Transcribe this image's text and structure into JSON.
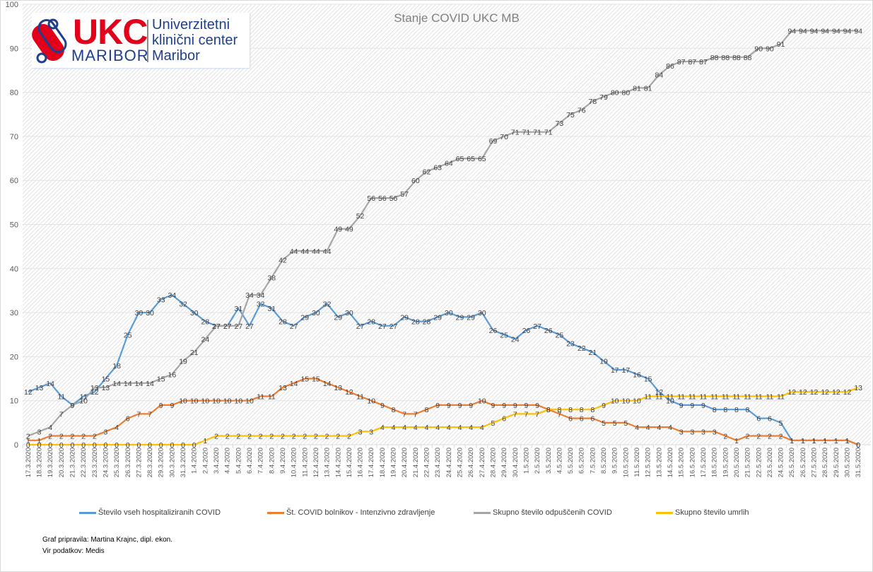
{
  "logo": {
    "brand": "UKC",
    "city": "MARIBOR",
    "lines": [
      "Univerzitetni",
      "klinični center",
      "Maribor"
    ]
  },
  "footer": {
    "author": "Graf pripravila: Martina Krajnc, dipl. ekon.",
    "source": "Vir podatkov: Medis"
  },
  "chart_data": {
    "type": "line",
    "title": "Stanje  COVID UKC MB",
    "xlabel": "",
    "ylabel": "",
    "ylim": [
      0,
      100
    ],
    "yticks": [
      0,
      10,
      20,
      30,
      40,
      50,
      60,
      70,
      80,
      90,
      100
    ],
    "grid": true,
    "legend": "bottom",
    "x": [
      "17.3.2020",
      "18.3.2020",
      "19.3.2020",
      "20.3.2020",
      "21.3.2020",
      "22.3.2020",
      "23.3.2020",
      "24.3.2020",
      "25.3.2020",
      "26.3.2020",
      "27.3.2020",
      "28.3.2020",
      "29.3.2020",
      "30.3.2020",
      "31.3.2020",
      "1.4.2020",
      "2.4.2020",
      "3.4.2020",
      "4.4.2020",
      "5.4.2020",
      "6.4.2020",
      "7.4.2020",
      "8.4.2020",
      "9.4.2020",
      "10.4.2020",
      "11.4.2020",
      "12.4.2020",
      "13.4.2020",
      "14.4.2020",
      "15.4.2020",
      "16.4.2020",
      "17.4.2020",
      "18.4.2020",
      "19.4.2020",
      "20.4.2020",
      "21.4.2020",
      "22.4.2020",
      "23.4.2020",
      "24.4.2020",
      "25.4.2020",
      "26.4.2020",
      "27.4.2020",
      "28.4.2020",
      "29.4.2020",
      "30.4.2020",
      "1.5.2020",
      "2.5.2020",
      "3.5.2020",
      "4.5.2020",
      "5.5.2020",
      "6.5.2020",
      "7.5.2020",
      "8.5.2020",
      "9.5.2020",
      "10.5.2020",
      "11.5.2020",
      "12.5.2020",
      "13.5.2020",
      "14.5.2020",
      "15.5.2020",
      "16.5.2020",
      "17.5.2020",
      "18.5.2020",
      "19.5.2020",
      "20.5.2020",
      "21.5.2020",
      "22.5.2020",
      "23.5.2020",
      "24.5.2020",
      "25.5.2020",
      "26.5.2020",
      "27.5.2020",
      "28.5.2020",
      "29.5.2020",
      "30.5.2020",
      "31.5.2020"
    ],
    "series": [
      {
        "name": "Število vseh hospitaliziranih COVID",
        "color": "#5b9bd5",
        "values": [
          12,
          13,
          14,
          11,
          9,
          11,
          12,
          15,
          18,
          25,
          30,
          30,
          33,
          34,
          32,
          30,
          28,
          27,
          27,
          31,
          27,
          32,
          31,
          28,
          27,
          29,
          30,
          32,
          29,
          30,
          27,
          28,
          27,
          27,
          29,
          28,
          28,
          29,
          30,
          29,
          29,
          30,
          26,
          25,
          24,
          26,
          27,
          26,
          25,
          23,
          22,
          21,
          19,
          17,
          17,
          16,
          15,
          12,
          10,
          9,
          9,
          9,
          8,
          8,
          8,
          8,
          6,
          6,
          5,
          1,
          1,
          1,
          1,
          1,
          1,
          0
        ]
      },
      {
        "name": "Št. COVID bolnikov - Intenzivno zdravljenje",
        "color": "#ed7d31",
        "values": [
          1,
          1,
          2,
          2,
          2,
          2,
          2,
          3,
          4,
          6,
          7,
          7,
          9,
          9,
          10,
          10,
          10,
          10,
          10,
          10,
          10,
          11,
          11,
          13,
          14,
          15,
          15,
          14,
          13,
          12,
          11,
          10,
          9,
          8,
          7,
          7,
          8,
          9,
          9,
          9,
          9,
          10,
          9,
          9,
          9,
          9,
          9,
          8,
          7,
          6,
          6,
          6,
          5,
          5,
          5,
          4,
          4,
          4,
          4,
          3,
          3,
          3,
          3,
          2,
          1,
          2,
          2,
          2,
          2,
          1,
          1,
          1,
          1,
          1,
          1,
          0
        ]
      },
      {
        "name": "Skupno število odpuščenih COVID",
        "color": "#a5a5a5",
        "values": [
          2,
          3,
          4,
          7,
          9,
          10,
          13,
          13,
          14,
          14,
          14,
          14,
          15,
          16,
          19,
          21,
          24,
          27,
          27,
          27,
          34,
          34,
          38,
          42,
          44,
          44,
          44,
          44,
          49,
          49,
          52,
          56,
          56,
          56,
          57,
          60,
          62,
          63,
          64,
          65,
          65,
          65,
          69,
          70,
          71,
          71,
          71,
          71,
          73,
          75,
          76,
          78,
          79,
          80,
          80,
          81,
          81,
          84,
          86,
          87,
          87,
          87,
          88,
          88,
          88,
          88,
          90,
          90,
          91,
          94,
          94,
          94,
          94,
          94,
          94,
          94
        ]
      },
      {
        "name": "Skupno število umrlih",
        "color": "#ffc000",
        "values": [
          0,
          0,
          0,
          0,
          0,
          0,
          0,
          0,
          0,
          0,
          0,
          0,
          0,
          0,
          0,
          0,
          1,
          2,
          2,
          2,
          2,
          2,
          2,
          2,
          2,
          2,
          2,
          2,
          2,
          2,
          3,
          3,
          4,
          4,
          4,
          4,
          4,
          4,
          4,
          4,
          4,
          4,
          5,
          6,
          7,
          7,
          7,
          8,
          8,
          8,
          8,
          8,
          9,
          10,
          10,
          10,
          11,
          11,
          11,
          11,
          11,
          11,
          11,
          11,
          11,
          11,
          11,
          11,
          11,
          12,
          12,
          12,
          12,
          12,
          12,
          13
        ]
      }
    ]
  }
}
